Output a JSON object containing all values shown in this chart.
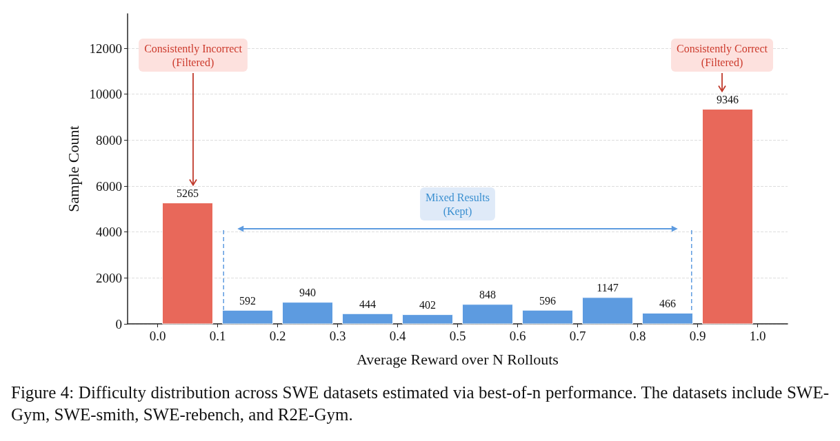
{
  "chart_data": {
    "type": "histogram",
    "xlabel": "Average Reward over N Rollouts",
    "ylabel": "Sample Count",
    "bins": [
      0,
      0.1,
      0.2,
      0.3,
      0.4,
      0.5,
      0.6,
      0.7,
      0.8,
      0.9,
      1.0
    ],
    "values": [
      5265,
      592,
      940,
      444,
      402,
      848,
      596,
      1147,
      466,
      9346
    ],
    "colors": [
      "#e8685a",
      "#5d9be0",
      "#5d9be0",
      "#5d9be0",
      "#5d9be0",
      "#5d9be0",
      "#5d9be0",
      "#5d9be0",
      "#5d9be0",
      "#e8685a"
    ],
    "data_labels": true,
    "xlim": [
      -0.05,
      1.05
    ],
    "xticks": [
      {
        "value": 0,
        "label": "0.0"
      },
      0.1,
      0.2,
      0.3,
      0.4,
      0.5,
      0.6,
      0.7,
      0.8,
      0.9,
      {
        "value": 1,
        "label": "1.0"
      }
    ],
    "ylim": [
      0,
      13500
    ],
    "yticks": [
      0,
      2000,
      4000,
      6000,
      8000,
      10000,
      12000
    ],
    "grid": "y",
    "legend": false,
    "ref_lines": [
      {
        "axis": "x",
        "value": 0.11,
        "color": "#5d9be0",
        "line_style": "dashed"
      },
      {
        "axis": "x",
        "value": 0.89,
        "color": "#5d9be0",
        "line_style": "dashed"
      }
    ],
    "annotations": [
      "Consistently Incorrect\n(Filtered)",
      "Consistently Correct\n(Filtered)",
      "Mixed Results\n(Kept)",
      "Figure 4: Difficulty distribution across SWE datasets estimated via best-of-n performance. The datasets include SWE-Gym, SWE-smith, SWE-rebench, and R2E-Gym."
    ]
  }
}
